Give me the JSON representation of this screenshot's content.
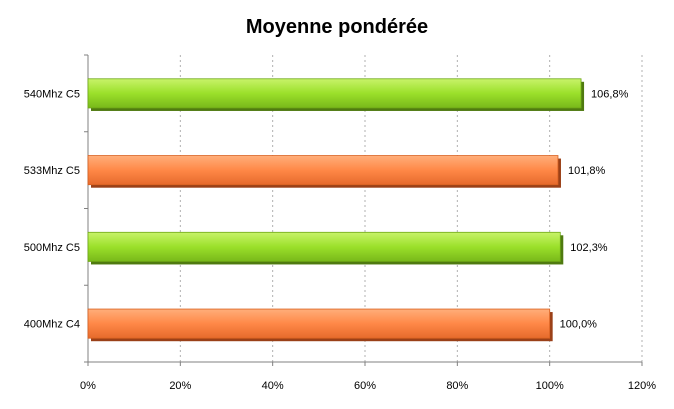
{
  "chart_data": {
    "type": "bar",
    "orientation": "horizontal",
    "title": "Moyenne pondérée",
    "xlabel": "",
    "ylabel": "",
    "categories": [
      "540Mhz C5",
      "533Mhz C5",
      "500Mhz C5",
      "400Mhz C4"
    ],
    "values": [
      106.8,
      101.8,
      102.3,
      100.0
    ],
    "value_labels": [
      "106,8%",
      "101,8%",
      "102,3%",
      "100,0%"
    ],
    "bar_colors": [
      "#99dd22",
      "#ff8844",
      "#99dd22",
      "#ff8844"
    ],
    "xlim": [
      0,
      120
    ],
    "x_ticks": [
      0,
      20,
      40,
      60,
      80,
      100,
      120
    ],
    "x_tick_labels": [
      "0%",
      "20%",
      "40%",
      "60%",
      "80%",
      "100%",
      "120%"
    ],
    "grid": "vertical-dashed",
    "legend": "none"
  }
}
